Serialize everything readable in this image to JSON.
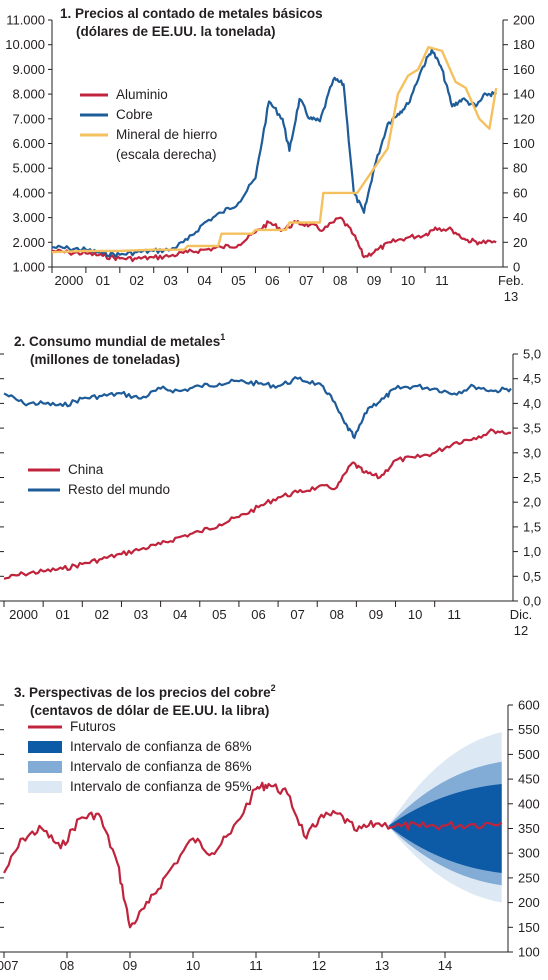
{
  "chart_data": [
    {
      "type": "line",
      "title": "1. Precios al contado de metales básicos",
      "subtitle": "(dólares de EE.UU. la tonelada)",
      "x_tick_labels": [
        "2000",
        "01",
        "02",
        "03",
        "04",
        "05",
        "06",
        "07",
        "08",
        "09",
        "10",
        "11",
        "Feb.",
        "13"
      ],
      "y_left": {
        "range": [
          1000,
          11000
        ],
        "ticks": [
          "1.000",
          "2.000",
          "3.000",
          "4.000",
          "5.000",
          "6.000",
          "7.000",
          "8.000",
          "9.000",
          "10.000",
          "11.000"
        ]
      },
      "y_right": {
        "range": [
          0,
          200
        ],
        "ticks": [
          "0",
          "20",
          "40",
          "60",
          "80",
          "100",
          "120",
          "140",
          "160",
          "180",
          "200"
        ]
      },
      "series": [
        {
          "name": "Aluminio",
          "axis": "left",
          "color": "#c0243c",
          "x": [
            2000.0,
            2000.5,
            2001.0,
            2001.5,
            2002.0,
            2002.5,
            2003.0,
            2003.5,
            2004.0,
            2004.5,
            2005.0,
            2005.5,
            2006.0,
            2006.4,
            2006.8,
            2007.2,
            2007.6,
            2008.0,
            2008.5,
            2008.9,
            2009.2,
            2009.6,
            2010.0,
            2010.5,
            2011.0,
            2011.3,
            2011.8,
            2012.2,
            2012.6,
            2013.1
          ],
          "y": [
            1650,
            1580,
            1550,
            1450,
            1350,
            1340,
            1380,
            1450,
            1600,
            1700,
            1800,
            1900,
            2400,
            2800,
            2500,
            2800,
            2700,
            2500,
            3000,
            2300,
            1400,
            1700,
            2000,
            2200,
            2300,
            2600,
            2500,
            2100,
            2000,
            2000
          ]
        },
        {
          "name": "Cobre",
          "axis": "left",
          "color": "#1e5c99",
          "x": [
            2000.0,
            2000.5,
            2001.0,
            2001.5,
            2002.0,
            2002.5,
            2003.0,
            2003.5,
            2004.0,
            2004.5,
            2005.0,
            2005.5,
            2006.0,
            2006.4,
            2006.8,
            2007.0,
            2007.3,
            2007.6,
            2007.9,
            2008.3,
            2008.6,
            2008.9,
            2009.2,
            2009.5,
            2009.9,
            2010.2,
            2010.5,
            2010.9,
            2011.2,
            2011.5,
            2011.8,
            2012.1,
            2012.5,
            2012.8,
            2013.1
          ],
          "y": [
            1800,
            1750,
            1700,
            1550,
            1500,
            1600,
            1650,
            1700,
            2100,
            2800,
            3200,
            3600,
            4600,
            7700,
            7000,
            5700,
            7800,
            7000,
            6900,
            8600,
            8400,
            4000,
            3200,
            5000,
            6800,
            7200,
            7600,
            9000,
            9800,
            9000,
            7500,
            7800,
            7500,
            8000,
            8000
          ]
        },
        {
          "name": "Mineral de hierro",
          "axis": "right",
          "color": "#f5c15f",
          "x": [
            2000.0,
            2001.0,
            2002.0,
            2003.0,
            2003.9,
            2004.0,
            2004.9,
            2005.0,
            2005.9,
            2006.0,
            2006.9,
            2007.0,
            2007.9,
            2008.0,
            2008.9,
            2009.0,
            2009.5,
            2009.9,
            2010.2,
            2010.5,
            2010.8,
            2011.1,
            2011.5,
            2011.9,
            2012.2,
            2012.6,
            2012.9,
            2013.1
          ],
          "y": [
            12,
            13,
            13,
            14,
            14,
            17,
            17,
            27,
            27,
            30,
            30,
            36,
            36,
            60,
            60,
            60,
            80,
            96,
            140,
            155,
            160,
            178,
            175,
            150,
            145,
            120,
            112,
            145
          ]
        }
      ]
    },
    {
      "type": "line",
      "title": "2. Consumo mundial de metales",
      "title_sup": "1",
      "subtitle": "(millones de toneladas)",
      "x_tick_labels": [
        "2000",
        "01",
        "02",
        "03",
        "04",
        "05",
        "06",
        "07",
        "08",
        "09",
        "10",
        "11",
        "Dic.",
        "12"
      ],
      "y_right": {
        "range": [
          0,
          5
        ],
        "ticks": [
          "0,0",
          "0,5",
          "1,0",
          "1,5",
          "2,0",
          "2,5",
          "3,0",
          "3,5",
          "4,0",
          "4,5",
          "5,0"
        ]
      },
      "series": [
        {
          "name": "China",
          "color": "#c0243c",
          "x": [
            2000.0,
            2000.5,
            2001.0,
            2001.5,
            2002.0,
            2002.5,
            2003.0,
            2003.5,
            2004.0,
            2004.5,
            2005.0,
            2005.5,
            2006.0,
            2006.5,
            2007.0,
            2007.5,
            2008.0,
            2008.5,
            2008.9,
            2009.2,
            2009.6,
            2010.0,
            2010.5,
            2011.0,
            2011.5,
            2012.0,
            2012.5,
            2012.95
          ],
          "y": [
            0.45,
            0.55,
            0.6,
            0.65,
            0.75,
            0.85,
            0.95,
            1.05,
            1.15,
            1.3,
            1.4,
            1.55,
            1.7,
            1.9,
            2.1,
            2.2,
            2.3,
            2.3,
            2.8,
            2.6,
            2.5,
            2.85,
            2.9,
            3.0,
            3.2,
            3.3,
            3.45,
            3.4
          ]
        },
        {
          "name": "Resto del mundo",
          "color": "#1e5c99",
          "x": [
            2000.0,
            2000.5,
            2001.0,
            2001.5,
            2002.0,
            2002.5,
            2003.0,
            2003.5,
            2004.0,
            2004.5,
            2005.0,
            2005.5,
            2006.0,
            2006.5,
            2007.0,
            2007.5,
            2008.0,
            2008.3,
            2008.7,
            2008.95,
            2009.3,
            2009.7,
            2010.0,
            2010.5,
            2011.0,
            2011.5,
            2012.0,
            2012.5,
            2012.95
          ],
          "y": [
            4.2,
            4.0,
            4.0,
            3.95,
            4.1,
            4.15,
            4.2,
            4.1,
            4.3,
            4.25,
            4.35,
            4.4,
            4.45,
            4.4,
            4.35,
            4.5,
            4.4,
            4.2,
            3.6,
            3.3,
            3.9,
            4.1,
            4.3,
            4.35,
            4.3,
            4.2,
            4.35,
            4.25,
            4.3
          ]
        }
      ]
    },
    {
      "type": "line",
      "title": "3. Perspectivas de los precios del cobre",
      "title_sup": "2",
      "subtitle": "(centavos de dólar de EE.UU. la libra)",
      "x_tick_labels": [
        "2007",
        "08",
        "09",
        "10",
        "11",
        "12",
        "13",
        "14"
      ],
      "y_right": {
        "range": [
          100,
          600
        ],
        "ticks": [
          "100",
          "150",
          "200",
          "250",
          "300",
          "350",
          "400",
          "450",
          "500",
          "550",
          "600"
        ]
      },
      "legend": [
        "Futuros",
        "Intervalo de confianza de 68%",
        "Intervalo de confianza de 86%",
        "Intervalo de confianza de 95%"
      ],
      "series": [
        {
          "name": "Futuros",
          "color": "#c0243c",
          "x": [
            2007.0,
            2007.3,
            2007.6,
            2007.9,
            2008.2,
            2008.5,
            2008.8,
            2009.0,
            2009.3,
            2009.6,
            2010.0,
            2010.3,
            2010.6,
            2011.0,
            2011.2,
            2011.5,
            2011.8,
            2012.0,
            2012.3,
            2012.6,
            2012.9,
            2013.3,
            2013.6,
            2014.0,
            2014.4,
            2014.9
          ],
          "y": [
            260,
            330,
            350,
            310,
            370,
            380,
            280,
            150,
            200,
            260,
            330,
            300,
            340,
            430,
            440,
            420,
            330,
            370,
            380,
            345,
            360,
            355,
            354,
            356,
            358,
            362
          ]
        }
      ],
      "fan": {
        "start_x": 2013.1,
        "x": [
          2013.1,
          2014.9
        ],
        "center": [
          355,
          362
        ],
        "ci68": [
          [
            355,
            355
          ],
          [
            260,
            440
          ]
        ],
        "ci86": [
          [
            355,
            355
          ],
          [
            235,
            485
          ]
        ],
        "ci95": [
          [
            355,
            355
          ],
          [
            200,
            545
          ]
        ]
      }
    }
  ]
}
